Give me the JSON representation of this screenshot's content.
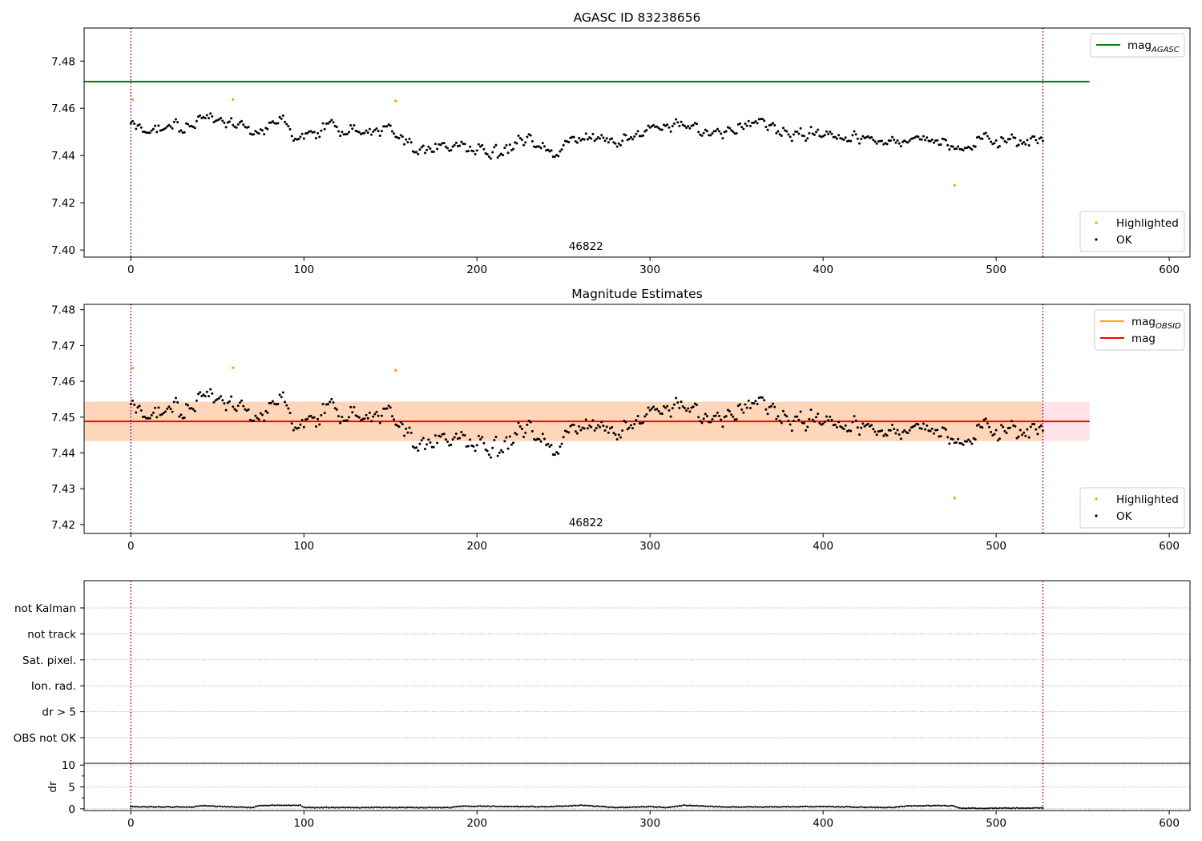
{
  "chart_data": [
    {
      "type": "scatter",
      "title": "AGASC ID 83238656",
      "xlim": [
        -27,
        612
      ],
      "ylim": [
        7.397,
        7.494
      ],
      "xticks": [
        0,
        100,
        200,
        300,
        400,
        500,
        600
      ],
      "yticks": [
        7.4,
        7.42,
        7.44,
        7.46,
        7.48
      ],
      "annotation": {
        "text": "46822",
        "x": 263
      },
      "vlines": [
        {
          "x": 0,
          "color": "#8b008b",
          "style": "dotted"
        },
        {
          "x": 527,
          "color": "#8b008b",
          "style": "dotted"
        }
      ],
      "hlines": [
        {
          "name": "mag_AGASC",
          "y": 7.4713,
          "color": "#008000",
          "xrange": [
            -27,
            554
          ]
        }
      ],
      "legends": [
        {
          "position": "upper-right",
          "entries": [
            {
              "label": "mag",
              "sub": "AGASC",
              "kind": "line",
              "color": "#008000"
            }
          ]
        },
        {
          "position": "lower-right",
          "entries": [
            {
              "label": "Highlighted",
              "kind": "dot",
              "color": "#ffa500"
            },
            {
              "label": "OK",
              "kind": "dot",
              "color": "#000000"
            }
          ]
        }
      ],
      "series_ref": [
        "highlighted",
        "ok"
      ]
    },
    {
      "type": "scatter",
      "title": "Magnitude Estimates",
      "xlim": [
        -27,
        612
      ],
      "ylim": [
        7.4175,
        7.4815
      ],
      "xticks": [
        0,
        100,
        200,
        300,
        400,
        500,
        600
      ],
      "yticks": [
        7.42,
        7.43,
        7.44,
        7.45,
        7.46,
        7.47,
        7.48
      ],
      "annotation": {
        "text": "46822",
        "x": 263
      },
      "vlines": [
        {
          "x": 0,
          "color": "#8b008b",
          "style": "dotted"
        },
        {
          "x": 527,
          "color": "#8b008b",
          "style": "dotted"
        }
      ],
      "hlines": [
        {
          "name": "mag",
          "y": 7.4488,
          "color": "#ff0000",
          "xrange": [
            -27,
            554
          ]
        }
      ],
      "bands": [
        {
          "name": "mag band",
          "y0": 7.4433,
          "y1": 7.4543,
          "xrange": [
            -27,
            554
          ],
          "color": "#ffc0cb",
          "opacity": 0.45
        },
        {
          "name": "mag_OBSID band",
          "y0": 7.4433,
          "y1": 7.4543,
          "xrange": [
            -27,
            527
          ],
          "color": "#ffa500",
          "opacity": 0.2
        }
      ],
      "legends": [
        {
          "position": "upper-right",
          "entries": [
            {
              "label": "mag",
              "sub": "OBSID",
              "kind": "line",
              "color": "#ffa500"
            },
            {
              "label": "mag",
              "kind": "line",
              "color": "#ff0000"
            }
          ]
        },
        {
          "position": "lower-right",
          "entries": [
            {
              "label": "Highlighted",
              "kind": "dot",
              "color": "#ffa500"
            },
            {
              "label": "OK",
              "kind": "dot",
              "color": "#000000"
            }
          ]
        }
      ],
      "series_ref": [
        "highlighted",
        "ok"
      ]
    },
    {
      "type": "table",
      "title": "",
      "xlim": [
        -27,
        612
      ],
      "categories": [
        "not Kalman",
        "not track",
        "Sat. pixel.",
        "Ion. rad.",
        "dr > 5",
        "OBS not OK"
      ],
      "flags": [],
      "vlines": [
        {
          "x": 0,
          "color": "#8b008b",
          "style": "dotted"
        },
        {
          "x": 527,
          "color": "#8b008b",
          "style": "dotted"
        }
      ]
    },
    {
      "type": "scatter",
      "title": "",
      "ylabel": "dr",
      "xlim": [
        -27,
        612
      ],
      "ylim": [
        -0.4,
        10.4
      ],
      "xticks": [
        0,
        100,
        200,
        300,
        400,
        500,
        600
      ],
      "yticks": [
        0,
        5,
        10
      ],
      "grid": true,
      "vlines": [
        {
          "x": 0,
          "color": "#8b008b",
          "style": "dotted"
        },
        {
          "x": 527,
          "color": "#8b008b",
          "style": "dotted"
        }
      ],
      "series": [
        {
          "values_from": "dr"
        }
      ]
    }
  ],
  "series": {
    "highlighted": {
      "name": "Highlighted",
      "color": "#ffa500",
      "points": [
        [
          1,
          7.4637
        ],
        [
          59,
          7.4638
        ],
        [
          153,
          7.4631
        ],
        [
          476,
          7.4274
        ]
      ]
    },
    "ok": {
      "name": "OK",
      "color": "#000000",
      "n": 528,
      "mean": 7.4488,
      "anchors": [
        [
          0,
          7.453
        ],
        [
          30,
          7.451
        ],
        [
          40,
          7.457
        ],
        [
          55,
          7.454
        ],
        [
          70,
          7.449
        ],
        [
          85,
          7.456
        ],
        [
          100,
          7.447
        ],
        [
          115,
          7.454
        ],
        [
          130,
          7.449
        ],
        [
          150,
          7.451
        ],
        [
          165,
          7.443
        ],
        [
          185,
          7.444
        ],
        [
          200,
          7.442
        ],
        [
          215,
          7.441
        ],
        [
          230,
          7.448
        ],
        [
          245,
          7.442
        ],
        [
          260,
          7.448
        ],
        [
          280,
          7.446
        ],
        [
          295,
          7.451
        ],
        [
          320,
          7.454
        ],
        [
          340,
          7.449
        ],
        [
          360,
          7.454
        ],
        [
          380,
          7.449
        ],
        [
          400,
          7.449
        ],
        [
          420,
          7.448
        ],
        [
          440,
          7.447
        ],
        [
          460,
          7.448
        ],
        [
          475,
          7.443
        ],
        [
          490,
          7.446
        ],
        [
          510,
          7.447
        ],
        [
          527,
          7.446
        ]
      ],
      "noise": 0.0045
    },
    "dr": {
      "n": 528,
      "anchors": [
        [
          0,
          0.5
        ],
        [
          35,
          0.4
        ],
        [
          40,
          0.7
        ],
        [
          70,
          0.3
        ],
        [
          75,
          0.8
        ],
        [
          98,
          0.8
        ],
        [
          100,
          0.3
        ],
        [
          185,
          0.3
        ],
        [
          190,
          0.6
        ],
        [
          240,
          0.5
        ],
        [
          260,
          0.8
        ],
        [
          280,
          0.3
        ],
        [
          300,
          0.5
        ],
        [
          310,
          0.3
        ],
        [
          320,
          0.8
        ],
        [
          345,
          0.4
        ],
        [
          400,
          0.5
        ],
        [
          440,
          0.3
        ],
        [
          450,
          0.7
        ],
        [
          475,
          0.7
        ],
        [
          480,
          0.1
        ],
        [
          527,
          0.2
        ]
      ]
    }
  },
  "fig": {
    "width": 1500,
    "height": 1050
  }
}
